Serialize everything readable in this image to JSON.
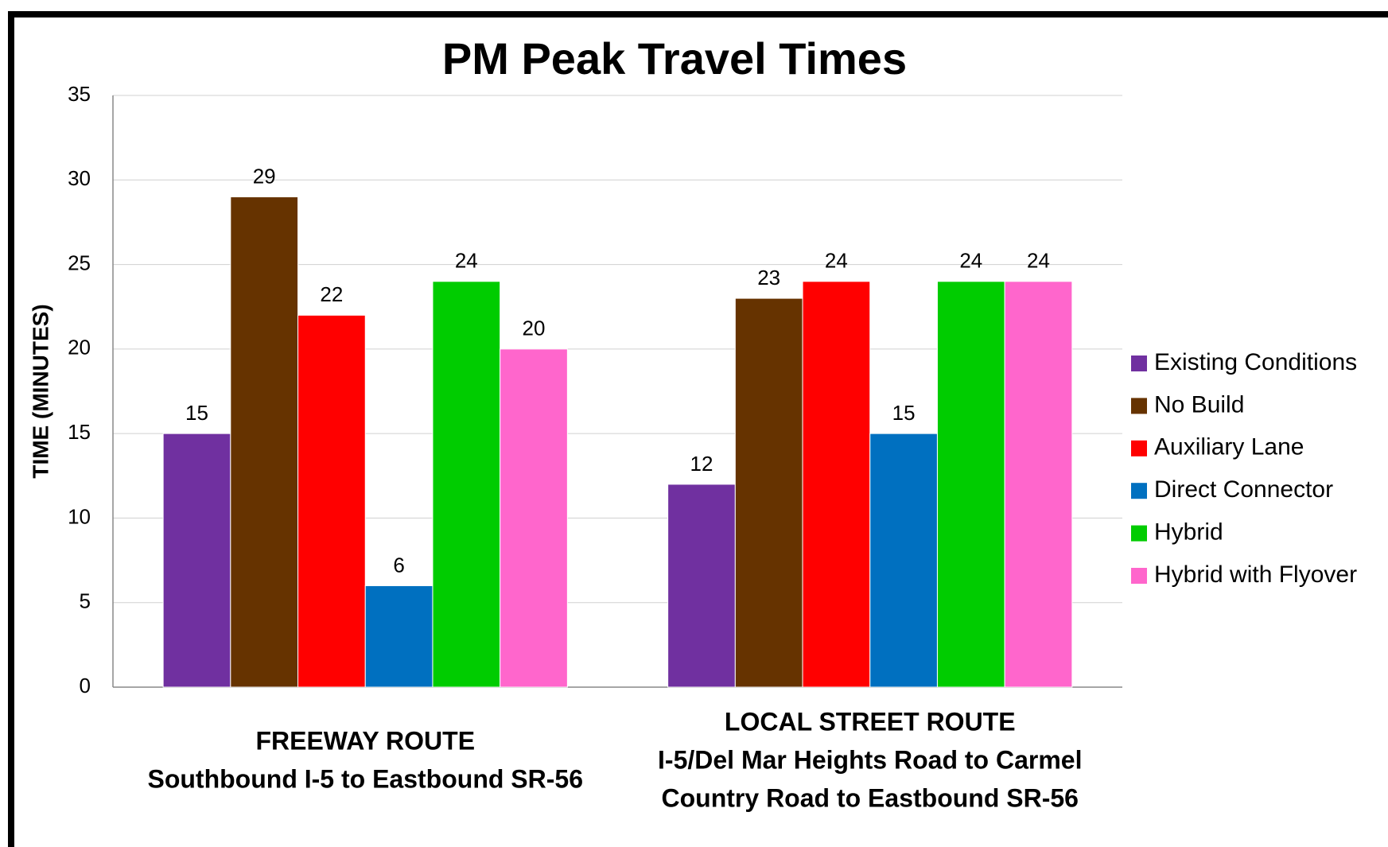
{
  "chart_data": {
    "type": "bar",
    "title": "PM Peak Travel Times",
    "y_label": "TIME (MINUTES)",
    "categories": [
      [
        "FREEWAY ROUTE",
        "Southbound I-5 to Eastbound SR-56"
      ],
      [
        "LOCAL STREET ROUTE",
        "I-5/Del Mar Heights Road to Carmel",
        "Country Road to Eastbound SR-56"
      ]
    ],
    "series": [
      {
        "name": "Existing Conditions",
        "color": "#7030a0",
        "values": [
          15,
          12
        ]
      },
      {
        "name": "No Build",
        "color": "#663300",
        "values": [
          29,
          23
        ]
      },
      {
        "name": "Auxiliary Lane",
        "color": "#ff0000",
        "values": [
          22,
          24
        ]
      },
      {
        "name": "Direct Connector",
        "color": "#0070c0",
        "values": [
          6,
          15
        ]
      },
      {
        "name": "Hybrid",
        "color": "#00cc00",
        "values": [
          24,
          24
        ]
      },
      {
        "name": "Hybrid with Flyover",
        "color": "#ff66cc",
        "values": [
          20,
          24
        ]
      }
    ],
    "ylim": [
      0,
      35
    ],
    "yticks": [
      0,
      5,
      10,
      15,
      20,
      25,
      30,
      35
    ],
    "grid": true,
    "legend": "right"
  }
}
